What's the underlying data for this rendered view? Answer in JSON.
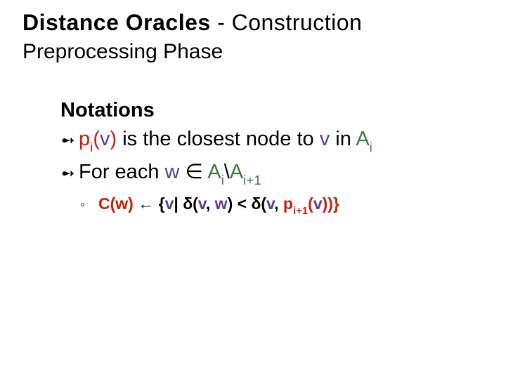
{
  "colors": {
    "text": "#000000",
    "red": "#c81e0a",
    "green": "#3a7a3a",
    "purple": "#5b3b9a",
    "background": "#ffffff"
  },
  "typography": {
    "family": "Comic Sans MS",
    "title_fontsize": 32,
    "subtitle_fontsize": 30,
    "body_fontsize": 29,
    "sub_fontsize": 23
  },
  "title": {
    "bold": "Distance Oracles",
    "rest": " - Construction"
  },
  "subtitle": "Preprocessing Phase",
  "heading": "Notations",
  "bullet_glyph": "➻",
  "sub_glyph": "◦",
  "bullets": [
    {
      "p": "p",
      "p_sub": "i",
      "pv_open": "(",
      "v1": "v",
      "pv_close": ")",
      "txt1": " is the closest node to ",
      "v2": "v",
      "txt2": " in ",
      "A": "A",
      "A_sub": "i"
    },
    {
      "txt1": "For each ",
      "w": "w",
      "in": " ∈ ",
      "A1": "A",
      "A1_sub": "i",
      "slash": "\\",
      "A2": "A",
      "A2_sub": "i+1"
    }
  ],
  "subline": {
    "Cw": "C(w)",
    "arrow": " ← ",
    "open": "{",
    "v1": "v",
    "bar": "| ",
    "d1": "δ(",
    "v2": "v",
    "comma1": ", ",
    "w": "w",
    "close1": ") < ",
    "d2": "δ(",
    "v3": "v",
    "comma2": ", ",
    "p": "p",
    "p_sub": "i+1",
    "popen": "(",
    "v4": "v",
    "pclose": "))}"
  }
}
